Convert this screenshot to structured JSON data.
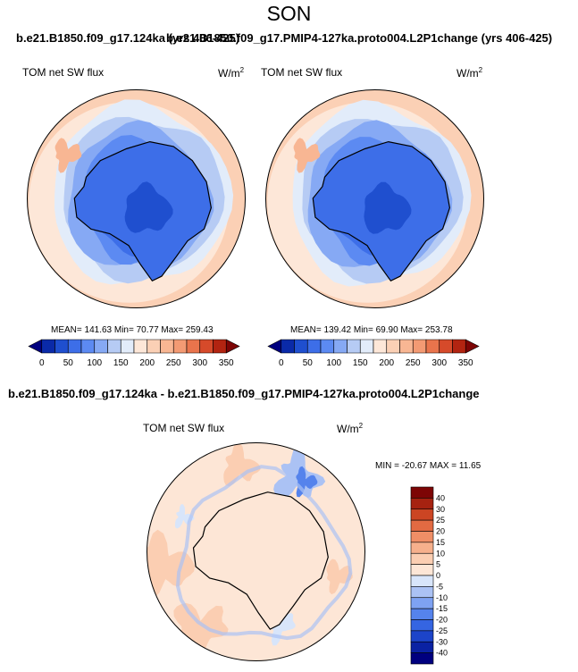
{
  "season": "SON",
  "top_title_left": "b.e21.B1850.f09_g17.124ka (yrs 406-425)",
  "top_title_right": "b.e21.B1850.f09_g17.PMIP4-127ka.proto004.L2P1change (yrs 406-425)",
  "bottom_title": "b.e21.B1850.f09_g17.124ka - b.e21.B1850.f09_g17.PMIP4-127ka.proto004.L2P1change",
  "variable": "TOM net SW flux",
  "units_base": "W/m",
  "units_exp": "2",
  "panel_left_stats": "MEAN= 141.63  Min=  70.77  Max= 259.43",
  "panel_right_stats": "MEAN= 139.42  Min=  69.90  Max= 253.78",
  "diff_stats": "MIN = -20.67 MAX =  11.65",
  "colors": {
    "abs_scale": [
      "#00007f",
      "#0a2aa8",
      "#1f4fcf",
      "#3d6ee8",
      "#5c8af2",
      "#86a9f4",
      "#b6cbf4",
      "#e2ecfa",
      "#fde7d8",
      "#fbd0b5",
      "#f8b693",
      "#f39a73",
      "#e9744c",
      "#d64a2a",
      "#b22411",
      "#7d0505"
    ],
    "diff_scale": [
      "#00007f",
      "#0a22a3",
      "#1c44c9",
      "#3565e2",
      "#5583ec",
      "#7ea2f2",
      "#abc2f4",
      "#d8e5fa",
      "#fde6d6",
      "#fbceb2",
      "#f6b08c",
      "#ef8e66",
      "#e26a42",
      "#cc4523",
      "#a62210",
      "#7d0505"
    ]
  },
  "chart_data": [
    {
      "type": "heatmap",
      "title": "b.e21.B1850.f09_g17.124ka (yrs 406-425)",
      "subtitle": "SON",
      "variable": "TOM net SW flux",
      "units": "W/m2",
      "projection": "polar stereographic, south pole",
      "stats": {
        "mean": 141.63,
        "min": 70.77,
        "max": 259.43
      },
      "colorbar_ticks": [
        "0",
        "50",
        "100",
        "150",
        "200",
        "250",
        "300",
        "350"
      ],
      "colorbar_levels": [
        0,
        25,
        50,
        75,
        100,
        125,
        150,
        175,
        200,
        225,
        250,
        275,
        300,
        325,
        350
      ]
    },
    {
      "type": "heatmap",
      "title": "b.e21.B1850.f09_g17.PMIP4-127ka.proto004.L2P1change (yrs 406-425)",
      "subtitle": "SON",
      "variable": "TOM net SW flux",
      "units": "W/m2",
      "projection": "polar stereographic, south pole",
      "stats": {
        "mean": 139.42,
        "min": 69.9,
        "max": 253.78
      },
      "colorbar_ticks": [
        "0",
        "50",
        "100",
        "150",
        "200",
        "250",
        "300",
        "350"
      ],
      "colorbar_levels": [
        0,
        25,
        50,
        75,
        100,
        125,
        150,
        175,
        200,
        225,
        250,
        275,
        300,
        325,
        350
      ]
    },
    {
      "type": "heatmap",
      "title": "b.e21.B1850.f09_g17.124ka - b.e21.B1850.f09_g17.PMIP4-127ka.proto004.L2P1change",
      "variable": "TOM net SW flux",
      "units": "W/m2",
      "projection": "polar stereographic, south pole",
      "stats": {
        "min": -20.67,
        "max": 11.65
      },
      "colorbar_ticks": [
        "40",
        "30",
        "25",
        "20",
        "15",
        "10",
        "5",
        "0",
        "-5",
        "-10",
        "-15",
        "-20",
        "-25",
        "-30",
        "-40"
      ]
    }
  ]
}
